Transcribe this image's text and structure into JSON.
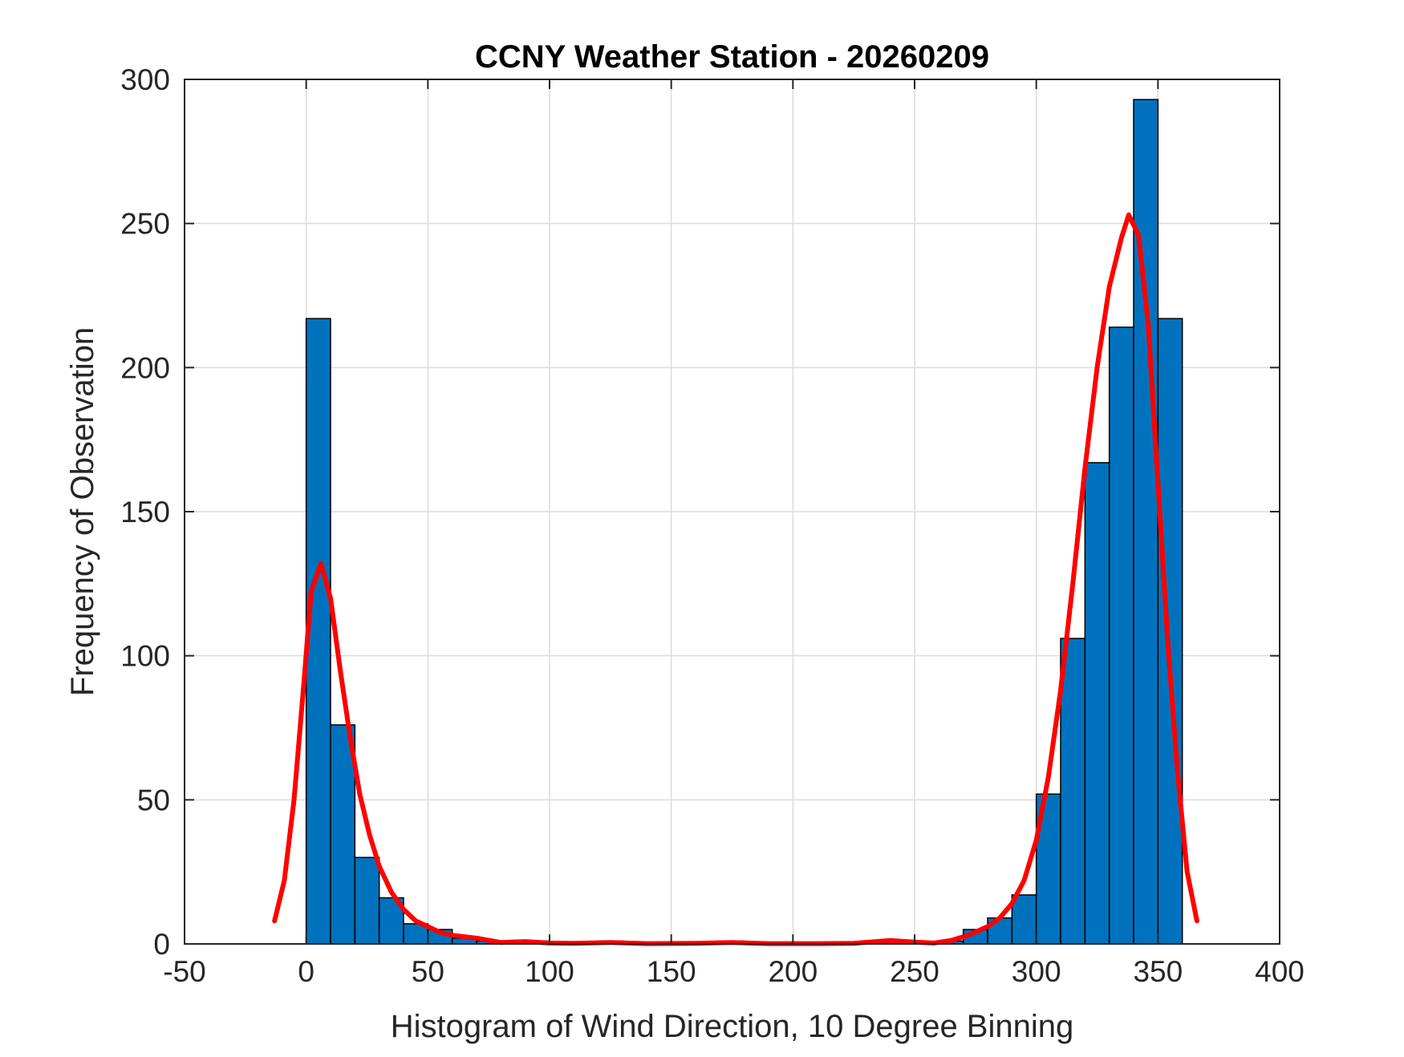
{
  "chart_data": {
    "type": "bar",
    "title": "CCNY Weather Station - 20260209",
    "xlabel": "Histogram of Wind Direction, 10 Degree Binning",
    "ylabel": "Frequency of Observation",
    "xlim": [
      -50,
      400
    ],
    "ylim": [
      0,
      300
    ],
    "xticks": [
      -50,
      0,
      50,
      100,
      150,
      200,
      250,
      300,
      350,
      400
    ],
    "yticks": [
      0,
      50,
      100,
      150,
      200,
      250,
      300
    ],
    "grid": true,
    "bin_width": 10,
    "bins": [
      {
        "x": 0,
        "count": 217
      },
      {
        "x": 10,
        "count": 76
      },
      {
        "x": 20,
        "count": 30
      },
      {
        "x": 30,
        "count": 16
      },
      {
        "x": 40,
        "count": 7
      },
      {
        "x": 50,
        "count": 5
      },
      {
        "x": 60,
        "count": 2
      },
      {
        "x": 70,
        "count": 1
      },
      {
        "x": 80,
        "count": 0
      },
      {
        "x": 90,
        "count": 1
      },
      {
        "x": 100,
        "count": 0
      },
      {
        "x": 110,
        "count": 0
      },
      {
        "x": 120,
        "count": 1
      },
      {
        "x": 130,
        "count": 0
      },
      {
        "x": 140,
        "count": 0
      },
      {
        "x": 150,
        "count": 0
      },
      {
        "x": 160,
        "count": 0
      },
      {
        "x": 170,
        "count": 1
      },
      {
        "x": 180,
        "count": 0
      },
      {
        "x": 190,
        "count": 0
      },
      {
        "x": 200,
        "count": 0
      },
      {
        "x": 210,
        "count": 0
      },
      {
        "x": 220,
        "count": 0
      },
      {
        "x": 230,
        "count": 1
      },
      {
        "x": 240,
        "count": 1
      },
      {
        "x": 250,
        "count": 0
      },
      {
        "x": 260,
        "count": 1
      },
      {
        "x": 270,
        "count": 5
      },
      {
        "x": 280,
        "count": 9
      },
      {
        "x": 290,
        "count": 17
      },
      {
        "x": 300,
        "count": 52
      },
      {
        "x": 310,
        "count": 106
      },
      {
        "x": 320,
        "count": 167
      },
      {
        "x": 330,
        "count": 214
      },
      {
        "x": 340,
        "count": 293
      },
      {
        "x": 350,
        "count": 217
      }
    ],
    "bar_color": "#0072BD",
    "bar_edge_color": "#000000",
    "fit_line": {
      "color": "#FF0000",
      "points": [
        [
          -13,
          8
        ],
        [
          -9,
          22
        ],
        [
          -5,
          50
        ],
        [
          -1,
          90
        ],
        [
          2,
          122
        ],
        [
          6,
          132
        ],
        [
          10,
          120
        ],
        [
          14,
          95
        ],
        [
          18,
          72
        ],
        [
          22,
          52
        ],
        [
          26,
          38
        ],
        [
          30,
          27
        ],
        [
          35,
          18
        ],
        [
          40,
          12
        ],
        [
          45,
          8
        ],
        [
          50,
          6
        ],
        [
          55,
          4
        ],
        [
          60,
          3
        ],
        [
          70,
          2
        ],
        [
          80,
          0.5
        ],
        [
          90,
          0.8
        ],
        [
          100,
          0.3
        ],
        [
          110,
          0.2
        ],
        [
          125,
          0.5
        ],
        [
          140,
          0.1
        ],
        [
          160,
          0.2
        ],
        [
          175,
          0.5
        ],
        [
          190,
          0.1
        ],
        [
          210,
          0.1
        ],
        [
          225,
          0.2
        ],
        [
          240,
          1.2
        ],
        [
          250,
          0.6
        ],
        [
          258,
          0.3
        ],
        [
          265,
          1.2
        ],
        [
          272,
          3
        ],
        [
          280,
          6
        ],
        [
          285,
          9
        ],
        [
          290,
          14
        ],
        [
          295,
          22
        ],
        [
          300,
          36
        ],
        [
          305,
          58
        ],
        [
          310,
          88
        ],
        [
          315,
          125
        ],
        [
          320,
          165
        ],
        [
          325,
          200
        ],
        [
          330,
          228
        ],
        [
          335,
          245
        ],
        [
          338,
          253
        ],
        [
          342,
          246
        ],
        [
          346,
          215
        ],
        [
          350,
          160
        ],
        [
          354,
          105
        ],
        [
          358,
          60
        ],
        [
          362,
          25
        ],
        [
          366,
          8
        ]
      ]
    }
  }
}
